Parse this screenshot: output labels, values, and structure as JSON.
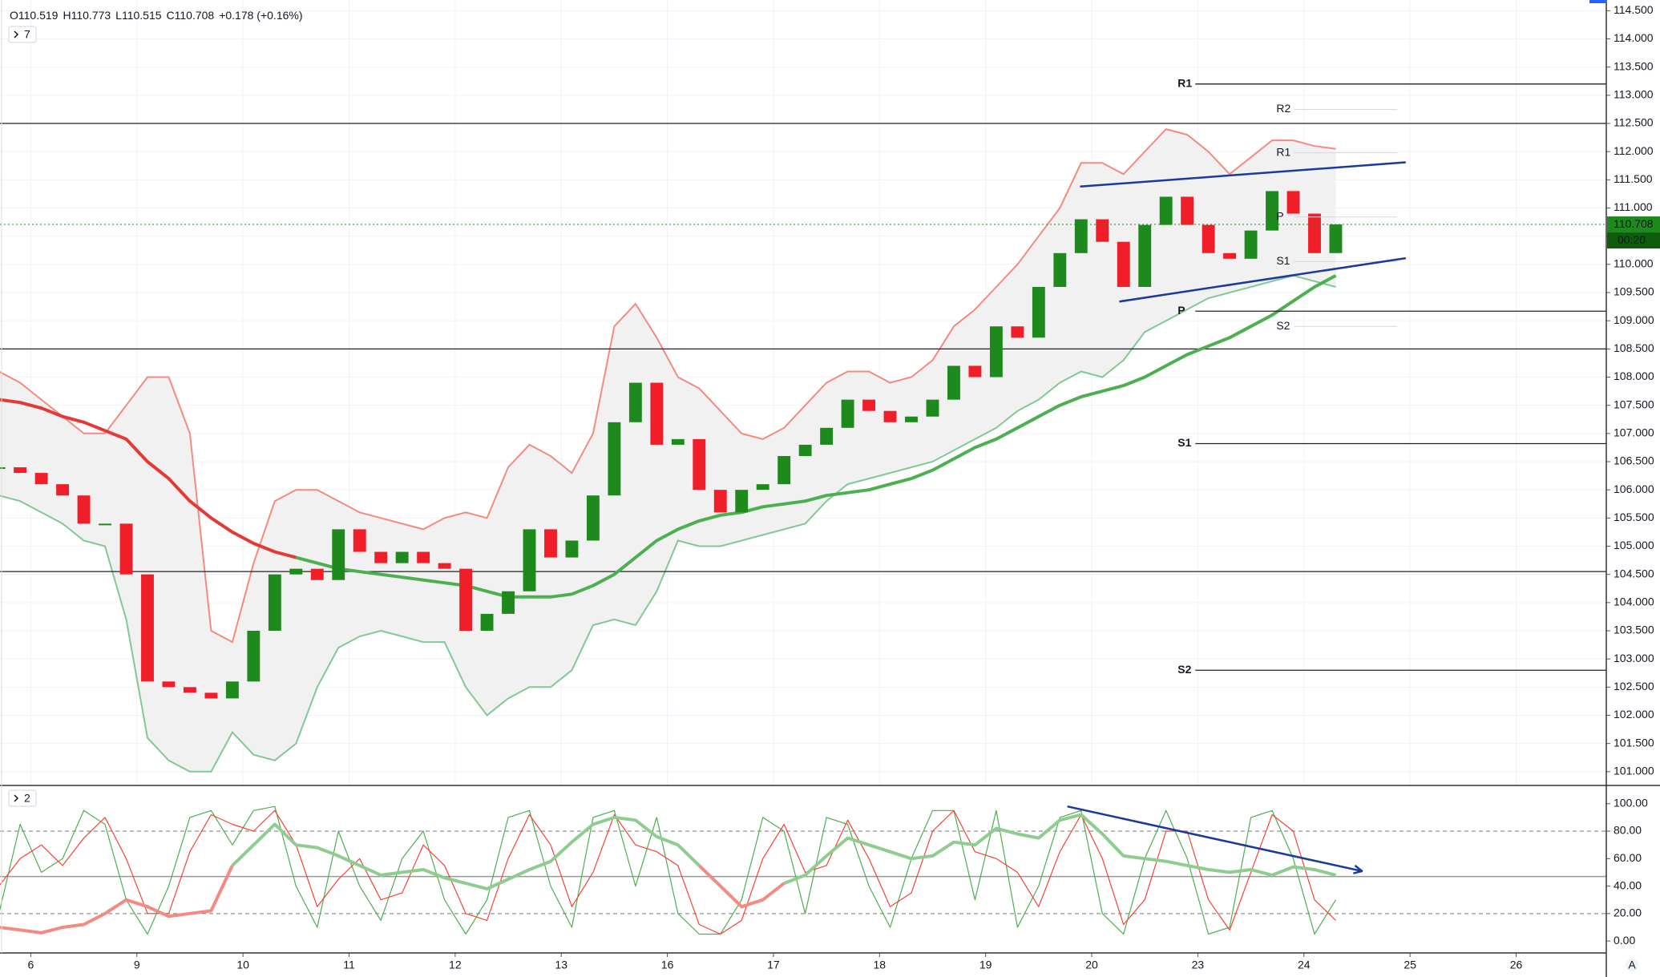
{
  "chart_data": [
    {
      "type": "candlestick",
      "ohlc": [
        "O110.519",
        "H110.773",
        "L110.515",
        "C110.708",
        "+0.178 (+0.16%)"
      ],
      "indicator_count": "7",
      "x": [
        -0.3,
        -0.1,
        0.1,
        0.3,
        0.5,
        0.7,
        0.9,
        1.1,
        1.3,
        1.5,
        1.7,
        1.9,
        2.1,
        2.3,
        2.5,
        2.7,
        2.9,
        3.1,
        3.3,
        3.5,
        3.7,
        3.9,
        4.1,
        4.3,
        4.5,
        4.7,
        4.9,
        5.1,
        5.3,
        5.5,
        5.7,
        5.9,
        6.1,
        6.3,
        6.5,
        6.7,
        6.9,
        7.1,
        7.3,
        7.5,
        7.7,
        7.9,
        8.1,
        8.3,
        8.5,
        8.7,
        8.9,
        9.1,
        9.3,
        9.5,
        9.7,
        9.9,
        10.1,
        10.3,
        10.5,
        10.7,
        10.9,
        11.1,
        11.3,
        11.5,
        11.7,
        11.9,
        12.1,
        12.3
      ],
      "close": [
        106.4,
        106.3,
        106.1,
        105.9,
        105.4,
        105.4,
        104.5,
        102.6,
        102.5,
        102.4,
        102.3,
        102.6,
        103.5,
        104.5,
        104.6,
        104.4,
        105.3,
        104.9,
        104.7,
        104.9,
        104.7,
        104.6,
        103.5,
        103.8,
        104.2,
        105.3,
        104.8,
        105.1,
        105.9,
        107.2,
        107.9,
        106.8,
        106.9,
        106.0,
        105.6,
        106.0,
        106.1,
        106.6,
        106.8,
        107.1,
        107.6,
        107.4,
        107.2,
        107.3,
        107.6,
        108.2,
        108.0,
        108.9,
        108.7,
        109.6,
        110.2,
        110.8,
        110.4,
        109.6,
        110.7,
        111.2,
        110.7,
        110.2,
        110.1,
        110.6,
        111.3,
        110.9,
        110.2,
        110.708
      ],
      "up_color": "#1e8a1e",
      "down_color": "#f01e28",
      "band": {
        "upper_color": "#f28b82",
        "lower_color": "#81c995",
        "fill": "#f1f1f1",
        "upper": [
          108.1,
          107.9,
          107.6,
          107.3,
          107.0,
          107.0,
          107.5,
          108.0,
          108.0,
          107.0,
          103.5,
          103.3,
          104.7,
          105.8,
          106.0,
          106.0,
          105.8,
          105.6,
          105.5,
          105.4,
          105.3,
          105.5,
          105.6,
          105.5,
          106.4,
          106.8,
          106.6,
          106.3,
          107.0,
          108.9,
          109.3,
          108.7,
          108.0,
          107.8,
          107.4,
          107.0,
          106.9,
          107.1,
          107.5,
          107.9,
          108.1,
          108.1,
          107.9,
          108.0,
          108.3,
          108.9,
          109.2,
          109.6,
          110.0,
          110.5,
          111.0,
          111.8,
          111.8,
          111.6,
          112.0,
          112.4,
          112.3,
          112.0,
          111.6,
          111.9,
          112.2,
          112.2,
          112.1,
          112.05
        ],
        "lower": [
          105.9,
          105.8,
          105.6,
          105.4,
          105.1,
          105.0,
          103.7,
          101.6,
          101.2,
          101.0,
          101.0,
          101.7,
          101.3,
          101.2,
          101.5,
          102.5,
          103.2,
          103.4,
          103.5,
          103.4,
          103.3,
          103.3,
          102.5,
          102.0,
          102.3,
          102.5,
          102.5,
          102.8,
          103.6,
          103.7,
          103.6,
          104.2,
          105.1,
          105.0,
          105.0,
          105.1,
          105.2,
          105.3,
          105.4,
          105.8,
          106.1,
          106.2,
          106.3,
          106.4,
          106.5,
          106.7,
          106.9,
          107.1,
          107.4,
          107.6,
          107.9,
          108.1,
          108.0,
          108.3,
          108.8,
          109.0,
          109.2,
          109.4,
          109.5,
          109.6,
          109.7,
          109.8,
          109.7,
          109.6
        ]
      },
      "series": [
        {
          "color": "#e53935",
          "width": 4,
          "values": [
            107.6,
            107.55,
            107.45,
            107.3,
            107.2,
            107.05,
            106.9,
            106.5,
            106.2,
            105.8,
            105.5,
            105.25,
            105.05,
            104.9,
            104.8,
            null,
            null,
            null,
            null,
            null,
            null,
            null,
            null,
            null,
            null,
            null,
            null,
            null,
            null,
            null,
            null,
            null,
            null,
            null,
            null,
            null,
            null,
            null,
            null,
            null,
            null,
            null,
            null,
            null,
            null,
            null,
            null,
            null,
            null,
            null,
            null,
            null,
            null,
            null,
            null,
            null,
            null,
            null,
            null,
            null,
            null,
            null,
            null,
            null
          ]
        },
        {
          "color": "#4caf50",
          "width": 4,
          "values": [
            null,
            null,
            null,
            null,
            null,
            null,
            null,
            null,
            null,
            null,
            null,
            null,
            null,
            null,
            104.8,
            104.7,
            104.6,
            104.55,
            104.5,
            104.45,
            104.4,
            104.35,
            104.3,
            104.2,
            104.1,
            104.1,
            104.1,
            104.15,
            104.3,
            104.5,
            104.8,
            105.1,
            105.3,
            105.45,
            105.55,
            105.6,
            105.7,
            105.75,
            105.8,
            105.9,
            105.95,
            106.0,
            106.1,
            106.2,
            106.35,
            106.55,
            106.75,
            106.9,
            107.1,
            107.3,
            107.5,
            107.65,
            107.75,
            107.85,
            108.0,
            108.2,
            108.4,
            108.55,
            108.7,
            108.9,
            109.1,
            109.35,
            109.6,
            109.8
          ]
        }
      ],
      "hlines": [
        112.5,
        108.5,
        104.55
      ],
      "pivots": [
        {
          "label": "R1",
          "value": 113.2
        },
        {
          "label": "P",
          "value": 109.17
        },
        {
          "label": "S1",
          "value": 106.82
        },
        {
          "label": "S2",
          "value": 102.8
        }
      ],
      "pivot_start": 10.81,
      "faint_pivots": [
        {
          "label": "R2",
          "value": 112.75
        },
        {
          "label": "R1",
          "value": 111.98
        },
        {
          "label": "P",
          "value": 110.84
        },
        {
          "label": "S1",
          "value": 110.05
        },
        {
          "label": "S2",
          "value": 108.9
        }
      ],
      "faint_pivot_range": [
        11.74,
        12.88
      ],
      "trendlines": [
        {
          "x": [
            9.89,
            12.96
          ],
          "y": [
            111.38,
            111.81
          ],
          "color": "#1a3a9c"
        },
        {
          "x": [
            10.26,
            12.96
          ],
          "y": [
            109.34,
            110.11
          ],
          "color": "#1a3a9c"
        }
      ],
      "last_price": 110.708,
      "last_color": "#1e8a1e",
      "timer": "00:20",
      "xlim": [
        -0.29,
        14.85
      ],
      "ylim": [
        100.77,
        114.69
      ],
      "grid": true,
      "yticks": [
        {
          "value": 101,
          "label": "101.000"
        },
        {
          "value": 101.5,
          "label": "101.500"
        },
        {
          "value": 102,
          "label": "102.000"
        },
        {
          "value": 102.5,
          "label": "102.500"
        },
        {
          "value": 103,
          "label": "103.000"
        },
        {
          "value": 103.5,
          "label": "103.500"
        },
        {
          "value": 104,
          "label": "104.000"
        },
        {
          "value": 104.5,
          "label": "104.500"
        },
        {
          "value": 105,
          "label": "105.000"
        },
        {
          "value": 105.5,
          "label": "105.500"
        },
        {
          "value": 106,
          "label": "106.000"
        },
        {
          "value": 106.5,
          "label": "106.500"
        },
        {
          "value": 107,
          "label": "107.000"
        },
        {
          "value": 107.5,
          "label": "107.500"
        },
        {
          "value": 108,
          "label": "108.000"
        },
        {
          "value": 108.5,
          "label": "108.500"
        },
        {
          "value": 109,
          "label": "109.000"
        },
        {
          "value": 109.5,
          "label": "109.500"
        },
        {
          "value": 110,
          "label": "110.000"
        },
        {
          "value": 110.5,
          "label": "110.500"
        },
        {
          "value": 111,
          "label": "111.000"
        },
        {
          "value": 111.5,
          "label": "111.500"
        },
        {
          "value": 112,
          "label": "112.000"
        },
        {
          "value": 112.5,
          "label": "112.500"
        },
        {
          "value": 113,
          "label": "113.000"
        },
        {
          "value": 113.5,
          "label": "113.500"
        },
        {
          "value": 114,
          "label": "114.000"
        },
        {
          "value": 114.5,
          "label": "114.500"
        }
      ],
      "xticks": [
        {
          "value": 0,
          "label": "6"
        },
        {
          "value": 1,
          "label": "9"
        },
        {
          "value": 2,
          "label": "10"
        },
        {
          "value": 3,
          "label": "11"
        },
        {
          "value": 4,
          "label": "12"
        },
        {
          "value": 5,
          "label": "13"
        },
        {
          "value": 6,
          "label": "16"
        },
        {
          "value": 7,
          "label": "17"
        },
        {
          "value": 8,
          "label": "18"
        },
        {
          "value": 9,
          "label": "19"
        },
        {
          "value": 10,
          "label": "20"
        },
        {
          "value": 11,
          "label": "23"
        },
        {
          "value": 12,
          "label": "24"
        },
        {
          "value": 13,
          "label": "25"
        },
        {
          "value": 14,
          "label": "26"
        }
      ]
    },
    {
      "type": "line",
      "indicator_count": "2",
      "x": [
        -0.3,
        -0.1,
        0.1,
        0.3,
        0.5,
        0.7,
        0.9,
        1.1,
        1.3,
        1.5,
        1.7,
        1.9,
        2.1,
        2.3,
        2.5,
        2.7,
        2.9,
        3.1,
        3.3,
        3.5,
        3.7,
        3.9,
        4.1,
        4.3,
        4.5,
        4.7,
        4.9,
        5.1,
        5.3,
        5.5,
        5.7,
        5.9,
        6.1,
        6.3,
        6.5,
        6.7,
        6.9,
        7.1,
        7.3,
        7.5,
        7.7,
        7.9,
        8.1,
        8.3,
        8.5,
        8.7,
        8.9,
        9.1,
        9.3,
        9.5,
        9.7,
        9.9,
        10.1,
        10.3,
        10.5,
        10.7,
        10.9,
        11.1,
        11.3,
        11.5,
        11.7,
        11.9,
        12.1,
        12.3
      ],
      "series": [
        {
          "color": "#4caf50",
          "width": 1.2,
          "values": [
            20,
            85,
            50,
            60,
            95,
            85,
            30,
            5,
            40,
            90,
            95,
            70,
            95,
            98,
            40,
            10,
            80,
            40,
            15,
            60,
            80,
            30,
            5,
            30,
            90,
            95,
            40,
            10,
            90,
            95,
            40,
            90,
            20,
            5,
            5,
            30,
            90,
            80,
            20,
            90,
            85,
            40,
            10,
            60,
            95,
            95,
            30,
            95,
            10,
            40,
            90,
            95,
            20,
            5,
            60,
            95,
            60,
            5,
            10,
            90,
            95,
            60,
            5,
            30
          ]
        },
        {
          "color": "#f44336",
          "width": 1.2,
          "values": [
            40,
            60,
            70,
            55,
            75,
            90,
            60,
            20,
            20,
            65,
            92,
            85,
            80,
            95,
            70,
            25,
            45,
            60,
            30,
            35,
            70,
            55,
            20,
            15,
            60,
            92,
            70,
            25,
            50,
            92,
            70,
            65,
            55,
            12,
            5,
            15,
            60,
            85,
            50,
            55,
            88,
            60,
            25,
            35,
            80,
            95,
            65,
            60,
            50,
            25,
            65,
            92,
            60,
            12,
            30,
            80,
            80,
            30,
            8,
            50,
            92,
            80,
            30,
            15
          ]
        },
        {
          "color": "#f28b82",
          "width": 4,
          "values": [
            10,
            8,
            6,
            10,
            12,
            20,
            30,
            25,
            18,
            20,
            22,
            55,
            null,
            null,
            null,
            null,
            null,
            null,
            null,
            null,
            null,
            null,
            null,
            null,
            null,
            null,
            null,
            null,
            null,
            null,
            null,
            null,
            null,
            55,
            40,
            25,
            30,
            42,
            null,
            null,
            null,
            null,
            null,
            null,
            null,
            null,
            null,
            null,
            null,
            null,
            null,
            null,
            null,
            null,
            null,
            null,
            null,
            null,
            null,
            null,
            null,
            null,
            null,
            null
          ]
        },
        {
          "color": "#8fcc8f",
          "width": 4,
          "values": [
            null,
            null,
            null,
            null,
            null,
            null,
            null,
            null,
            null,
            null,
            null,
            55,
            70,
            85,
            70,
            68,
            62,
            55,
            48,
            50,
            52,
            46,
            42,
            38,
            45,
            52,
            58,
            72,
            85,
            90,
            88,
            76,
            70,
            55,
            null,
            null,
            null,
            42,
            48,
            62,
            75,
            70,
            65,
            60,
            62,
            72,
            70,
            82,
            78,
            75,
            88,
            92,
            78,
            62,
            60,
            58,
            55,
            52,
            50,
            52,
            48,
            54,
            52,
            48
          ]
        }
      ],
      "dashed_levels": [
        20,
        80
      ],
      "midline": 47,
      "trendlines": [
        {
          "x": [
            9.77,
            12.54
          ],
          "y": [
            98,
            51
          ],
          "color": "#1a3a9c",
          "arrow": true
        }
      ],
      "xlim": [
        -0.29,
        14.85
      ],
      "ylim": [
        -8.7,
        112.7
      ],
      "yticks": [
        {
          "value": 0,
          "label": "0.00"
        },
        {
          "value": 20,
          "label": "20.00"
        },
        {
          "value": 40,
          "label": "40.00"
        },
        {
          "value": 60,
          "label": "60.00"
        },
        {
          "value": 80,
          "label": "80.00"
        },
        {
          "value": 100,
          "label": "100.00"
        }
      ]
    }
  ]
}
